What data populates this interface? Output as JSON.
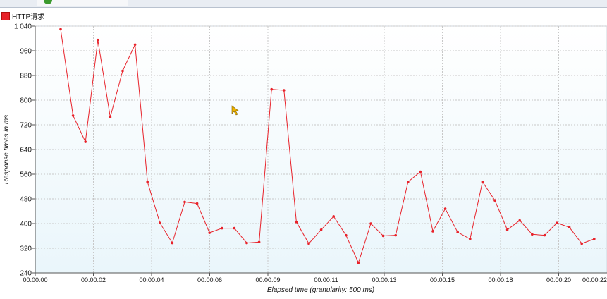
{
  "legend": {
    "label": "HTTP请求",
    "color": "#e8222a"
  },
  "chart_data": {
    "type": "line",
    "xlabel": "Elapsed time (granularity: 500 ms)",
    "ylabel": "Response times in ms",
    "ylim": [
      240,
      1040
    ],
    "y_ticks": [
      240,
      320,
      400,
      480,
      560,
      640,
      720,
      800,
      880,
      960,
      1040
    ],
    "y_tick_labels": [
      "240",
      "320",
      "400",
      "480",
      "560",
      "640",
      "720",
      "800",
      "880",
      "960",
      "1 040"
    ],
    "x_ticks": [
      "00:00:00",
      "00:00:02",
      "00:00:04",
      "00:00:06",
      "00:00:09",
      "00:00:11",
      "00:00:13",
      "00:00:15",
      "00:00:18",
      "00:00:20",
      "00:00:22"
    ],
    "grid": true,
    "line_color": "#e8222a",
    "series": [
      {
        "name": "HTTP请求",
        "values": [
          1030,
          750,
          665,
          995,
          745,
          895,
          980,
          535,
          402,
          337,
          470,
          465,
          370,
          385,
          385,
          337,
          340,
          835,
          832,
          405,
          335,
          380,
          423,
          362,
          273,
          400,
          360,
          362,
          535,
          568,
          375,
          448,
          372,
          350,
          535,
          475,
          380,
          410,
          365,
          362,
          402,
          388,
          335,
          350
        ]
      }
    ]
  }
}
